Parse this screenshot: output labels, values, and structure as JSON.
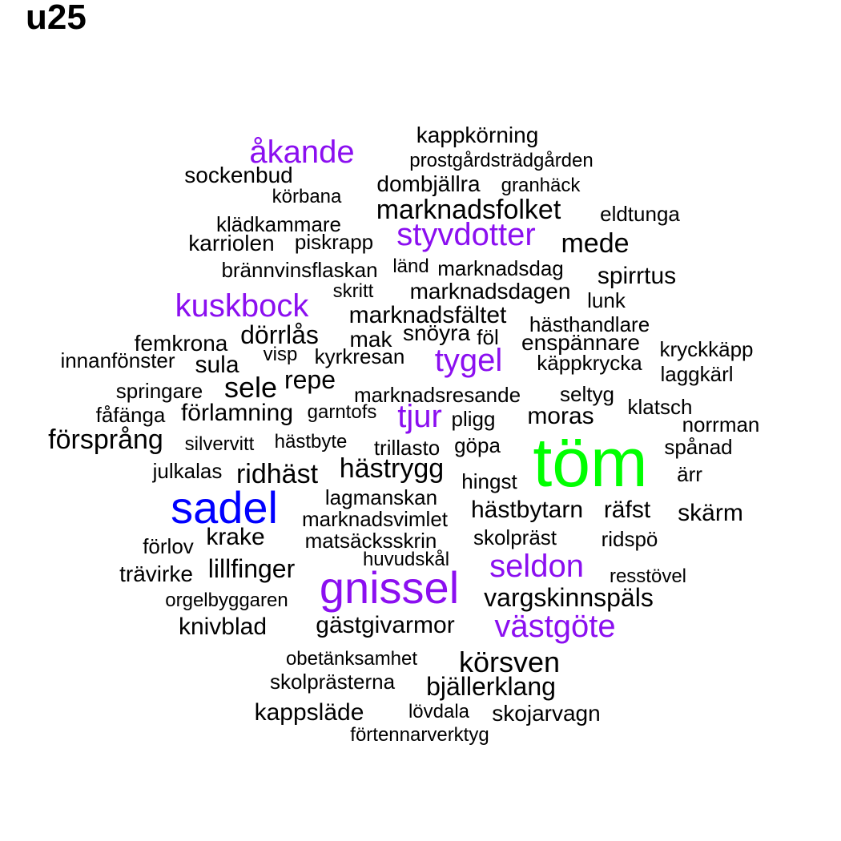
{
  "title": "u25",
  "colors": {
    "black": "#000000",
    "purple": "#8b0ff0",
    "blue": "#0000ff",
    "green": "#00ff00"
  },
  "words": [
    {
      "text": "töm",
      "color": "green"
    },
    {
      "text": "sadel",
      "color": "blue"
    },
    {
      "text": "gnissel",
      "color": "purple"
    },
    {
      "text": "kuskbock",
      "color": "purple"
    },
    {
      "text": "åkande",
      "color": "purple"
    },
    {
      "text": "styvdotter",
      "color": "purple"
    },
    {
      "text": "tygel",
      "color": "purple"
    },
    {
      "text": "tjur",
      "color": "purple"
    },
    {
      "text": "seldon",
      "color": "purple"
    },
    {
      "text": "västgöte",
      "color": "purple"
    },
    {
      "text": "kappkörning",
      "color": "black"
    },
    {
      "text": "prostgårdsträdgården",
      "color": "black"
    },
    {
      "text": "sockenbud",
      "color": "black"
    },
    {
      "text": "dombjällra",
      "color": "black"
    },
    {
      "text": "granhäck",
      "color": "black"
    },
    {
      "text": "körbana",
      "color": "black"
    },
    {
      "text": "marknadsfolket",
      "color": "black"
    },
    {
      "text": "eldtunga",
      "color": "black"
    },
    {
      "text": "klädkammare",
      "color": "black"
    },
    {
      "text": "karriolen",
      "color": "black"
    },
    {
      "text": "piskrapp",
      "color": "black"
    },
    {
      "text": "mede",
      "color": "black"
    },
    {
      "text": "brännvinsflaskan",
      "color": "black"
    },
    {
      "text": "länd",
      "color": "black"
    },
    {
      "text": "marknadsdag",
      "color": "black"
    },
    {
      "text": "spirrtus",
      "color": "black"
    },
    {
      "text": "skritt",
      "color": "black"
    },
    {
      "text": "marknadsdagen",
      "color": "black"
    },
    {
      "text": "lunk",
      "color": "black"
    },
    {
      "text": "marknadsfältet",
      "color": "black"
    },
    {
      "text": "hästhandlare",
      "color": "black"
    },
    {
      "text": "femkrona",
      "color": "black"
    },
    {
      "text": "dörrlås",
      "color": "black"
    },
    {
      "text": "mak",
      "color": "black"
    },
    {
      "text": "snöyra",
      "color": "black"
    },
    {
      "text": "föl",
      "color": "black"
    },
    {
      "text": "enspännare",
      "color": "black"
    },
    {
      "text": "kryckkäpp",
      "color": "black"
    },
    {
      "text": "innanfönster",
      "color": "black"
    },
    {
      "text": "visp",
      "color": "black"
    },
    {
      "text": "kyrkresan",
      "color": "black"
    },
    {
      "text": "käppkrycka",
      "color": "black"
    },
    {
      "text": "sula",
      "color": "black"
    },
    {
      "text": "laggkärl",
      "color": "black"
    },
    {
      "text": "sele",
      "color": "black"
    },
    {
      "text": "repe",
      "color": "black"
    },
    {
      "text": "springare",
      "color": "black"
    },
    {
      "text": "marknadsresande",
      "color": "black"
    },
    {
      "text": "seltyg",
      "color": "black"
    },
    {
      "text": "klatsch",
      "color": "black"
    },
    {
      "text": "fåfänga",
      "color": "black"
    },
    {
      "text": "förlamning",
      "color": "black"
    },
    {
      "text": "garntofs",
      "color": "black"
    },
    {
      "text": "pligg",
      "color": "black"
    },
    {
      "text": "moras",
      "color": "black"
    },
    {
      "text": "norrman",
      "color": "black"
    },
    {
      "text": "försprång",
      "color": "black"
    },
    {
      "text": "silvervitt",
      "color": "black"
    },
    {
      "text": "hästbyte",
      "color": "black"
    },
    {
      "text": "trillasto",
      "color": "black"
    },
    {
      "text": "göpa",
      "color": "black"
    },
    {
      "text": "spånad",
      "color": "black"
    },
    {
      "text": "julkalas",
      "color": "black"
    },
    {
      "text": "ridhäst",
      "color": "black"
    },
    {
      "text": "hästrygg",
      "color": "black"
    },
    {
      "text": "hingst",
      "color": "black"
    },
    {
      "text": "ärr",
      "color": "black"
    },
    {
      "text": "lagmanskan",
      "color": "black"
    },
    {
      "text": "hästbytarn",
      "color": "black"
    },
    {
      "text": "räfst",
      "color": "black"
    },
    {
      "text": "skärm",
      "color": "black"
    },
    {
      "text": "marknadsvimlet",
      "color": "black"
    },
    {
      "text": "krake",
      "color": "black"
    },
    {
      "text": "matsäcksskrin",
      "color": "black"
    },
    {
      "text": "skolpräst",
      "color": "black"
    },
    {
      "text": "ridspö",
      "color": "black"
    },
    {
      "text": "förlov",
      "color": "black"
    },
    {
      "text": "huvudskål",
      "color": "black"
    },
    {
      "text": "lillfinger",
      "color": "black"
    },
    {
      "text": "trävirke",
      "color": "black"
    },
    {
      "text": "resstövel",
      "color": "black"
    },
    {
      "text": "orgelbyggaren",
      "color": "black"
    },
    {
      "text": "vargskinnspäls",
      "color": "black"
    },
    {
      "text": "knivblad",
      "color": "black"
    },
    {
      "text": "gästgivarmor",
      "color": "black"
    },
    {
      "text": "obetänksamhet",
      "color": "black"
    },
    {
      "text": "körsven",
      "color": "black"
    },
    {
      "text": "skolprästerna",
      "color": "black"
    },
    {
      "text": "bjällerklang",
      "color": "black"
    },
    {
      "text": "kappsläde",
      "color": "black"
    },
    {
      "text": "lövdala",
      "color": "black"
    },
    {
      "text": "skojarvagn",
      "color": "black"
    },
    {
      "text": "förtennarverktyg",
      "color": "black"
    }
  ]
}
